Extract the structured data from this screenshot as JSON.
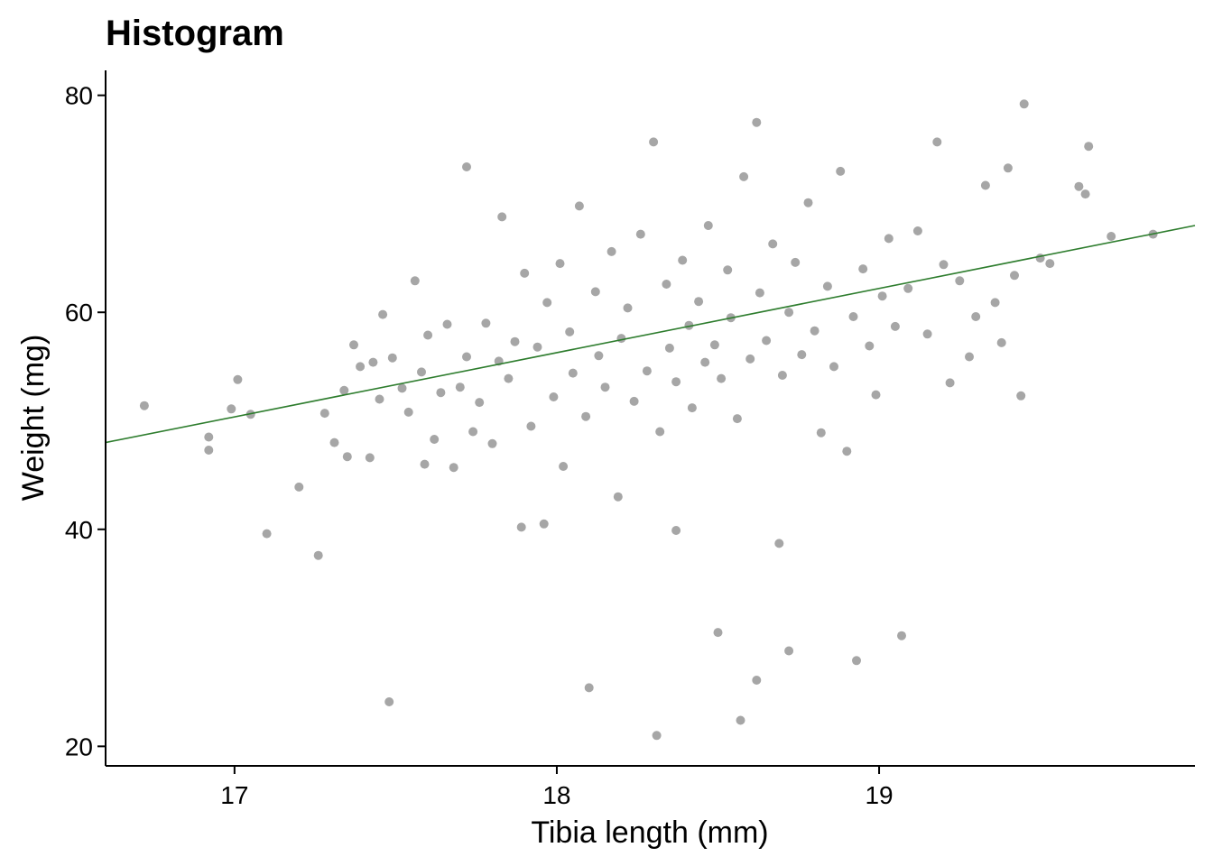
{
  "chart_data": {
    "type": "scatter",
    "title": "Histogram",
    "xlabel": "Tibia length (mm)",
    "ylabel": "Weight (mg)",
    "xlim": [
      16.6,
      19.98
    ],
    "ylim": [
      18.2,
      82.3
    ],
    "x_ticks": [
      17,
      18,
      19
    ],
    "y_ticks": [
      20,
      40,
      60,
      80
    ],
    "x_tick_labels": [
      "17",
      "18",
      "19"
    ],
    "y_tick_labels": [
      "20",
      "40",
      "60",
      "80"
    ],
    "grid": false,
    "legend": "none",
    "point_color": "#a6a6a6",
    "trendline": {
      "color": "#2e7d2e",
      "x": [
        16.6,
        19.98
      ],
      "y": [
        48.0,
        68.0
      ]
    },
    "series": [
      {
        "name": "specimens",
        "points": [
          [
            16.72,
            51.4
          ],
          [
            16.92,
            48.5
          ],
          [
            16.92,
            47.3
          ],
          [
            16.99,
            51.1
          ],
          [
            17.01,
            53.8
          ],
          [
            17.05,
            50.6
          ],
          [
            17.1,
            39.6
          ],
          [
            17.2,
            43.9
          ],
          [
            17.26,
            37.6
          ],
          [
            17.28,
            50.7
          ],
          [
            17.31,
            48.0
          ],
          [
            17.34,
            52.8
          ],
          [
            17.35,
            46.7
          ],
          [
            17.37,
            57.0
          ],
          [
            17.39,
            55.0
          ],
          [
            17.42,
            46.6
          ],
          [
            17.43,
            55.4
          ],
          [
            17.45,
            52.0
          ],
          [
            17.46,
            59.8
          ],
          [
            17.48,
            24.1
          ],
          [
            17.49,
            55.8
          ],
          [
            17.52,
            53.0
          ],
          [
            17.54,
            50.8
          ],
          [
            17.56,
            62.9
          ],
          [
            17.58,
            54.5
          ],
          [
            17.59,
            46.0
          ],
          [
            17.6,
            57.9
          ],
          [
            17.62,
            48.3
          ],
          [
            17.64,
            52.6
          ],
          [
            17.66,
            58.9
          ],
          [
            17.68,
            45.7
          ],
          [
            17.7,
            53.1
          ],
          [
            17.72,
            55.9
          ],
          [
            17.72,
            73.4
          ],
          [
            17.74,
            49.0
          ],
          [
            17.76,
            51.7
          ],
          [
            17.78,
            59.0
          ],
          [
            17.8,
            47.9
          ],
          [
            17.82,
            55.5
          ],
          [
            17.83,
            68.8
          ],
          [
            17.85,
            53.9
          ],
          [
            17.87,
            57.3
          ],
          [
            17.89,
            40.2
          ],
          [
            17.9,
            63.6
          ],
          [
            17.92,
            49.5
          ],
          [
            17.94,
            56.8
          ],
          [
            17.96,
            40.5
          ],
          [
            17.97,
            60.9
          ],
          [
            17.99,
            52.2
          ],
          [
            18.01,
            64.5
          ],
          [
            18.02,
            45.8
          ],
          [
            18.04,
            58.2
          ],
          [
            18.05,
            54.4
          ],
          [
            18.07,
            69.8
          ],
          [
            18.09,
            50.4
          ],
          [
            18.1,
            25.4
          ],
          [
            18.12,
            61.9
          ],
          [
            18.13,
            56.0
          ],
          [
            18.15,
            53.1
          ],
          [
            18.17,
            65.6
          ],
          [
            18.19,
            43.0
          ],
          [
            18.2,
            57.6
          ],
          [
            18.22,
            60.4
          ],
          [
            18.24,
            51.8
          ],
          [
            18.26,
            67.2
          ],
          [
            18.28,
            54.6
          ],
          [
            18.3,
            75.7
          ],
          [
            18.31,
            21.0
          ],
          [
            18.32,
            49.0
          ],
          [
            18.34,
            62.6
          ],
          [
            18.35,
            56.7
          ],
          [
            18.37,
            53.6
          ],
          [
            18.37,
            39.9
          ],
          [
            18.39,
            64.8
          ],
          [
            18.41,
            58.8
          ],
          [
            18.42,
            51.2
          ],
          [
            18.44,
            61.0
          ],
          [
            18.46,
            55.4
          ],
          [
            18.47,
            68.0
          ],
          [
            18.49,
            57.0
          ],
          [
            18.5,
            30.5
          ],
          [
            18.51,
            53.9
          ],
          [
            18.53,
            63.9
          ],
          [
            18.54,
            59.5
          ],
          [
            18.56,
            50.2
          ],
          [
            18.57,
            22.4
          ],
          [
            18.58,
            72.5
          ],
          [
            18.6,
            55.7
          ],
          [
            18.62,
            26.1
          ],
          [
            18.62,
            77.5
          ],
          [
            18.63,
            61.8
          ],
          [
            18.65,
            57.4
          ],
          [
            18.67,
            66.3
          ],
          [
            18.69,
            38.7
          ],
          [
            18.7,
            54.2
          ],
          [
            18.72,
            28.8
          ],
          [
            18.72,
            60.0
          ],
          [
            18.74,
            64.6
          ],
          [
            18.76,
            56.1
          ],
          [
            18.78,
            70.1
          ],
          [
            18.8,
            58.3
          ],
          [
            18.82,
            48.9
          ],
          [
            18.84,
            62.4
          ],
          [
            18.86,
            55.0
          ],
          [
            18.88,
            73.0
          ],
          [
            18.9,
            47.2
          ],
          [
            18.92,
            59.6
          ],
          [
            18.93,
            27.9
          ],
          [
            18.95,
            64.0
          ],
          [
            18.97,
            56.9
          ],
          [
            18.99,
            52.4
          ],
          [
            19.01,
            61.5
          ],
          [
            19.03,
            66.8
          ],
          [
            19.05,
            58.7
          ],
          [
            19.07,
            30.2
          ],
          [
            19.09,
            62.2
          ],
          [
            19.12,
            67.5
          ],
          [
            19.15,
            58.0
          ],
          [
            19.18,
            75.7
          ],
          [
            19.2,
            64.4
          ],
          [
            19.22,
            53.5
          ],
          [
            19.25,
            62.9
          ],
          [
            19.28,
            55.9
          ],
          [
            19.3,
            59.6
          ],
          [
            19.33,
            71.7
          ],
          [
            19.36,
            60.9
          ],
          [
            19.38,
            57.2
          ],
          [
            19.4,
            73.3
          ],
          [
            19.42,
            63.4
          ],
          [
            19.44,
            52.3
          ],
          [
            19.45,
            79.2
          ],
          [
            19.5,
            65.0
          ],
          [
            19.53,
            64.5
          ],
          [
            19.62,
            71.6
          ],
          [
            19.64,
            70.9
          ],
          [
            19.65,
            75.3
          ],
          [
            19.72,
            67.0
          ],
          [
            19.85,
            67.2
          ]
        ]
      }
    ]
  }
}
